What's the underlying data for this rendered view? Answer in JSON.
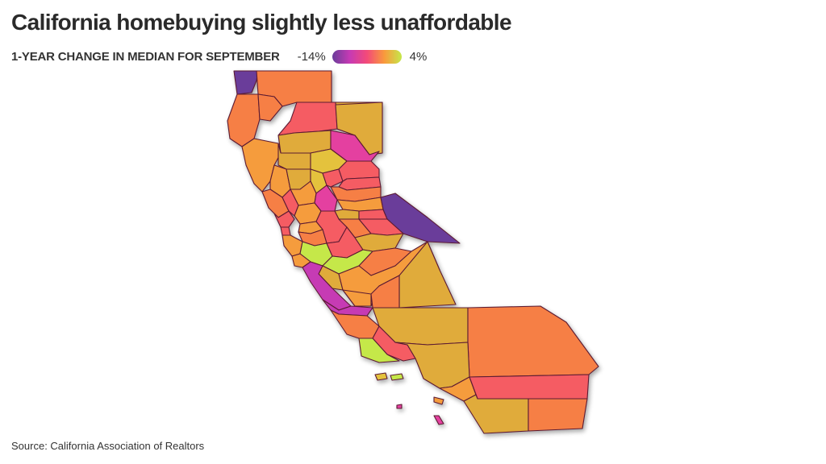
{
  "title": "California homebuying slightly less unaffordable",
  "legend": {
    "heading": "1-YEAR CHANGE IN MEDIAN FOR SEPTEMBER",
    "min_label": "-14%",
    "max_label": "4%",
    "min_value": -14,
    "max_value": 4
  },
  "source": "Source: California Association of Realtors",
  "colors": {
    "low": "#6a3d9a",
    "mid_low": "#c63ab4",
    "mid": "#f34a79",
    "mid_high": "#f99a3c",
    "high": "#c5e84a",
    "border": "#5c1a33"
  }
}
